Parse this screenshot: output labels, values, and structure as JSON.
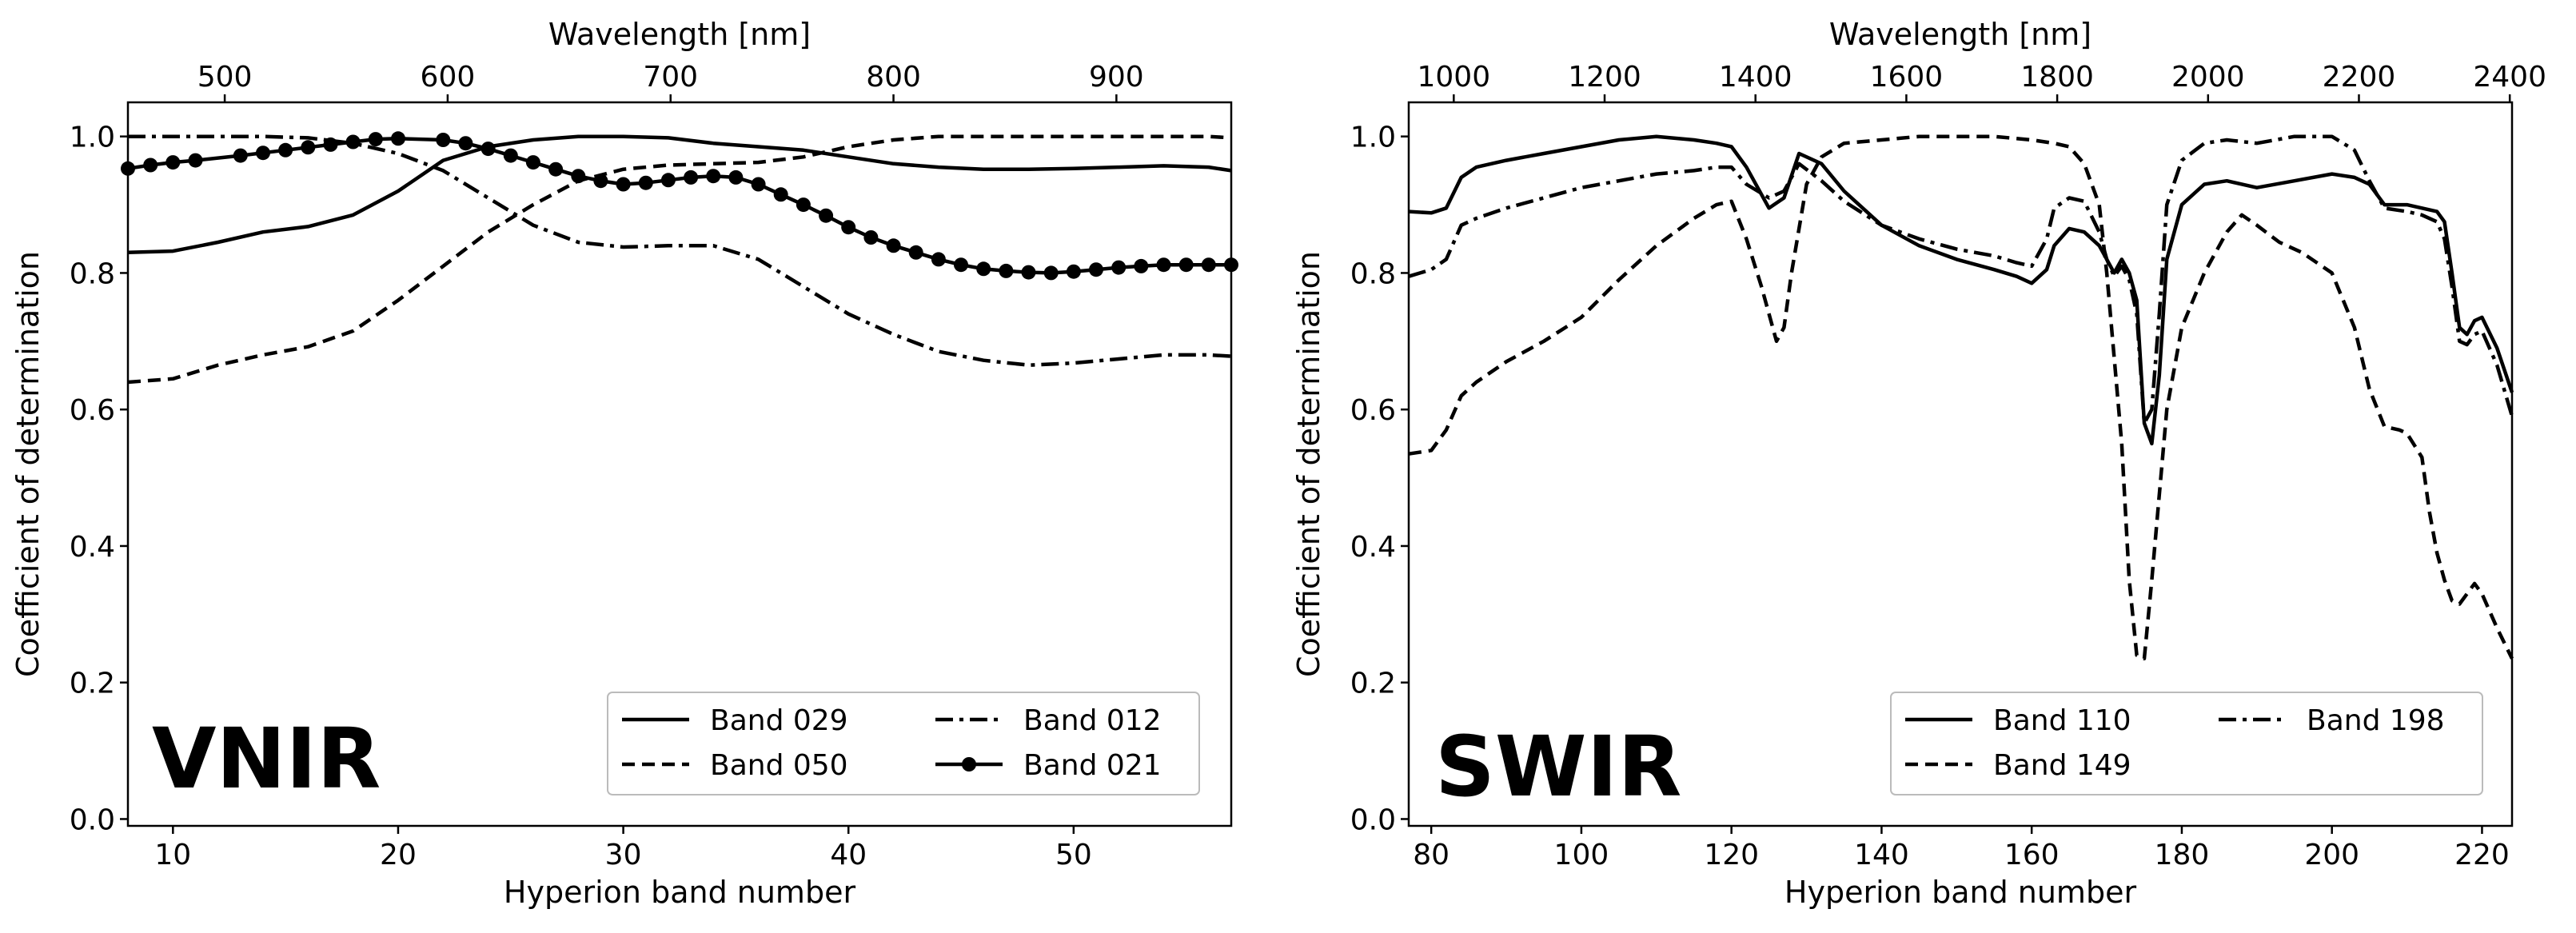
{
  "chart_data": [
    {
      "type": "line",
      "panel_label": "VNIR",
      "xlabel": "Hyperion band number",
      "ylabel": "Coefficient of determination",
      "top_xlabel": "Wavelength [nm]",
      "xlim": [
        8,
        57
      ],
      "ylim": [
        -0.01,
        1.05
      ],
      "xticks": [
        10,
        20,
        30,
        40,
        50
      ],
      "yticks": [
        0.0,
        0.2,
        0.4,
        0.6,
        0.8,
        1.0
      ],
      "ytick_labels": [
        "0.0",
        "0.2",
        "0.4",
        "0.6",
        "0.8",
        "1.0"
      ],
      "top_ticks": [
        {
          "label": "500",
          "band": 12.3
        },
        {
          "label": "600",
          "band": 22.2
        },
        {
          "label": "700",
          "band": 32.1
        },
        {
          "label": "800",
          "band": 42.0
        },
        {
          "label": "900",
          "band": 51.9
        }
      ],
      "legend_position": "lower-right",
      "series": [
        {
          "name": "Band 029",
          "dash": "solid",
          "marker": false,
          "x": [
            8,
            10,
            12,
            14,
            16,
            18,
            20,
            22,
            24,
            26,
            28,
            30,
            32,
            34,
            36,
            38,
            40,
            42,
            44,
            46,
            48,
            50,
            52,
            54,
            56,
            57
          ],
          "y": [
            0.83,
            0.832,
            0.845,
            0.86,
            0.868,
            0.885,
            0.92,
            0.965,
            0.985,
            0.995,
            1.0,
            1.0,
            0.998,
            0.99,
            0.985,
            0.98,
            0.97,
            0.96,
            0.955,
            0.952,
            0.952,
            0.953,
            0.955,
            0.957,
            0.955,
            0.95
          ]
        },
        {
          "name": "Band 050",
          "dash": "dashed",
          "marker": false,
          "x": [
            8,
            10,
            12,
            14,
            16,
            18,
            20,
            22,
            24,
            26,
            28,
            30,
            32,
            34,
            36,
            38,
            40,
            42,
            44,
            46,
            48,
            50,
            52,
            54,
            56,
            57
          ],
          "y": [
            0.64,
            0.645,
            0.665,
            0.68,
            0.692,
            0.715,
            0.76,
            0.81,
            0.86,
            0.9,
            0.935,
            0.952,
            0.958,
            0.96,
            0.962,
            0.97,
            0.985,
            0.995,
            1.0,
            1.0,
            1.0,
            1.0,
            1.0,
            1.0,
            1.0,
            0.998
          ]
        },
        {
          "name": "Band 012",
          "dash": "dashdot",
          "marker": false,
          "x": [
            8,
            10,
            12,
            14,
            16,
            18,
            20,
            22,
            24,
            26,
            28,
            30,
            32,
            34,
            36,
            38,
            40,
            42,
            44,
            46,
            48,
            50,
            52,
            54,
            56,
            57
          ],
          "y": [
            1.0,
            1.0,
            1.0,
            1.0,
            0.998,
            0.99,
            0.975,
            0.95,
            0.91,
            0.87,
            0.845,
            0.838,
            0.84,
            0.84,
            0.82,
            0.78,
            0.74,
            0.71,
            0.685,
            0.672,
            0.665,
            0.668,
            0.674,
            0.68,
            0.68,
            0.678
          ]
        },
        {
          "name": "Band 021",
          "dash": "solid",
          "marker": true,
          "x": [
            8,
            9,
            10,
            11,
            13,
            14,
            15,
            16,
            17,
            18,
            19,
            20,
            22,
            23,
            24,
            25,
            26,
            27,
            28,
            29,
            30,
            31,
            32,
            33,
            34,
            35,
            36,
            37,
            38,
            39,
            40,
            41,
            42,
            43,
            44,
            45,
            46,
            47,
            48,
            49,
            50,
            51,
            52,
            53,
            54,
            55,
            56,
            57
          ],
          "y": [
            0.953,
            0.958,
            0.962,
            0.965,
            0.972,
            0.976,
            0.98,
            0.984,
            0.988,
            0.992,
            0.996,
            0.997,
            0.995,
            0.99,
            0.982,
            0.972,
            0.962,
            0.952,
            0.942,
            0.935,
            0.93,
            0.932,
            0.936,
            0.94,
            0.942,
            0.94,
            0.93,
            0.915,
            0.9,
            0.884,
            0.867,
            0.852,
            0.84,
            0.83,
            0.82,
            0.812,
            0.806,
            0.803,
            0.801,
            0.8,
            0.802,
            0.805,
            0.808,
            0.81,
            0.812,
            0.812,
            0.812,
            0.812
          ]
        }
      ]
    },
    {
      "type": "line",
      "panel_label": "SWIR",
      "xlabel": "Hyperion band number",
      "ylabel": "Coefficient of determination",
      "top_xlabel": "Wavelength [nm]",
      "xlim": [
        77,
        224
      ],
      "ylim": [
        -0.01,
        1.05
      ],
      "xticks": [
        80,
        100,
        120,
        140,
        160,
        180,
        200,
        220
      ],
      "yticks": [
        0.0,
        0.2,
        0.4,
        0.6,
        0.8,
        1.0
      ],
      "ytick_labels": [
        "0.0",
        "0.2",
        "0.4",
        "0.6",
        "0.8",
        "1.0"
      ],
      "top_ticks": [
        {
          "label": "1000",
          "band": 83.0
        },
        {
          "label": "1200",
          "band": 103.1
        },
        {
          "label": "1400",
          "band": 123.2
        },
        {
          "label": "1600",
          "band": 143.3
        },
        {
          "label": "1800",
          "band": 163.4
        },
        {
          "label": "2000",
          "band": 183.5
        },
        {
          "label": "2200",
          "band": 203.6
        },
        {
          "label": "2400",
          "band": 223.7
        }
      ],
      "legend_position": "lower-right",
      "series": [
        {
          "name": "Band 110",
          "dash": "solid",
          "marker": false,
          "x": [
            77,
            80,
            82,
            84,
            86,
            90,
            95,
            100,
            105,
            110,
            115,
            118,
            120,
            122,
            125,
            127,
            129,
            132,
            135,
            140,
            145,
            150,
            155,
            158,
            160,
            162,
            163,
            165,
            167,
            169,
            170,
            171,
            172,
            173,
            174,
            175,
            176,
            177,
            178,
            180,
            183,
            186,
            190,
            195,
            200,
            203,
            205,
            207,
            210,
            212,
            214,
            215,
            216,
            217,
            218,
            219,
            220,
            222,
            224
          ],
          "y": [
            0.89,
            0.888,
            0.895,
            0.94,
            0.955,
            0.965,
            0.975,
            0.985,
            0.995,
            1.0,
            0.995,
            0.99,
            0.985,
            0.955,
            0.895,
            0.91,
            0.975,
            0.96,
            0.92,
            0.87,
            0.84,
            0.82,
            0.805,
            0.795,
            0.785,
            0.805,
            0.84,
            0.865,
            0.86,
            0.84,
            0.82,
            0.8,
            0.82,
            0.8,
            0.76,
            0.58,
            0.55,
            0.65,
            0.82,
            0.9,
            0.93,
            0.935,
            0.925,
            0.935,
            0.945,
            0.94,
            0.93,
            0.9,
            0.9,
            0.895,
            0.89,
            0.875,
            0.8,
            0.72,
            0.71,
            0.73,
            0.735,
            0.69,
            0.625
          ]
        },
        {
          "name": "Band 149",
          "dash": "dashed",
          "marker": false,
          "x": [
            77,
            80,
            82,
            84,
            86,
            90,
            95,
            100,
            105,
            110,
            115,
            118,
            120,
            122,
            124,
            126,
            127,
            128,
            130,
            132,
            135,
            140,
            145,
            150,
            155,
            160,
            163,
            165,
            167,
            169,
            170,
            172,
            173,
            174,
            175,
            176,
            178,
            180,
            183,
            186,
            188,
            190,
            193,
            196,
            200,
            203,
            205,
            207,
            209,
            210,
            212,
            213,
            214,
            215,
            216,
            217,
            218,
            219,
            220,
            222,
            224
          ],
          "y": [
            0.535,
            0.54,
            0.57,
            0.62,
            0.64,
            0.67,
            0.7,
            0.735,
            0.79,
            0.84,
            0.88,
            0.9,
            0.905,
            0.85,
            0.78,
            0.7,
            0.72,
            0.8,
            0.93,
            0.97,
            0.99,
            0.995,
            1.0,
            1.0,
            1.0,
            0.995,
            0.99,
            0.985,
            0.96,
            0.9,
            0.8,
            0.55,
            0.35,
            0.24,
            0.235,
            0.35,
            0.6,
            0.72,
            0.8,
            0.86,
            0.885,
            0.87,
            0.845,
            0.83,
            0.8,
            0.72,
            0.63,
            0.575,
            0.57,
            0.565,
            0.53,
            0.45,
            0.39,
            0.35,
            0.32,
            0.315,
            0.33,
            0.345,
            0.33,
            0.28,
            0.235
          ]
        },
        {
          "name": "Band 198",
          "dash": "dashdot",
          "marker": false,
          "x": [
            77,
            80,
            82,
            84,
            86,
            90,
            95,
            100,
            105,
            110,
            115,
            118,
            120,
            122,
            125,
            127,
            129,
            132,
            135,
            140,
            145,
            150,
            155,
            158,
            160,
            162,
            163,
            165,
            167,
            169,
            170,
            171,
            172,
            173,
            174,
            175,
            176,
            177,
            178,
            180,
            183,
            186,
            190,
            195,
            200,
            203,
            205,
            207,
            210,
            212,
            214,
            215,
            216,
            217,
            218,
            219,
            220,
            222,
            224
          ],
          "y": [
            0.795,
            0.805,
            0.82,
            0.87,
            0.88,
            0.895,
            0.91,
            0.925,
            0.935,
            0.945,
            0.95,
            0.955,
            0.955,
            0.93,
            0.91,
            0.92,
            0.96,
            0.935,
            0.905,
            0.87,
            0.85,
            0.835,
            0.825,
            0.815,
            0.81,
            0.85,
            0.895,
            0.91,
            0.905,
            0.86,
            0.82,
            0.795,
            0.81,
            0.79,
            0.74,
            0.58,
            0.6,
            0.74,
            0.9,
            0.965,
            0.99,
            0.995,
            0.99,
            1.0,
            1.0,
            0.98,
            0.935,
            0.895,
            0.89,
            0.885,
            0.875,
            0.85,
            0.78,
            0.7,
            0.695,
            0.71,
            0.715,
            0.665,
            0.59
          ]
        }
      ]
    }
  ]
}
